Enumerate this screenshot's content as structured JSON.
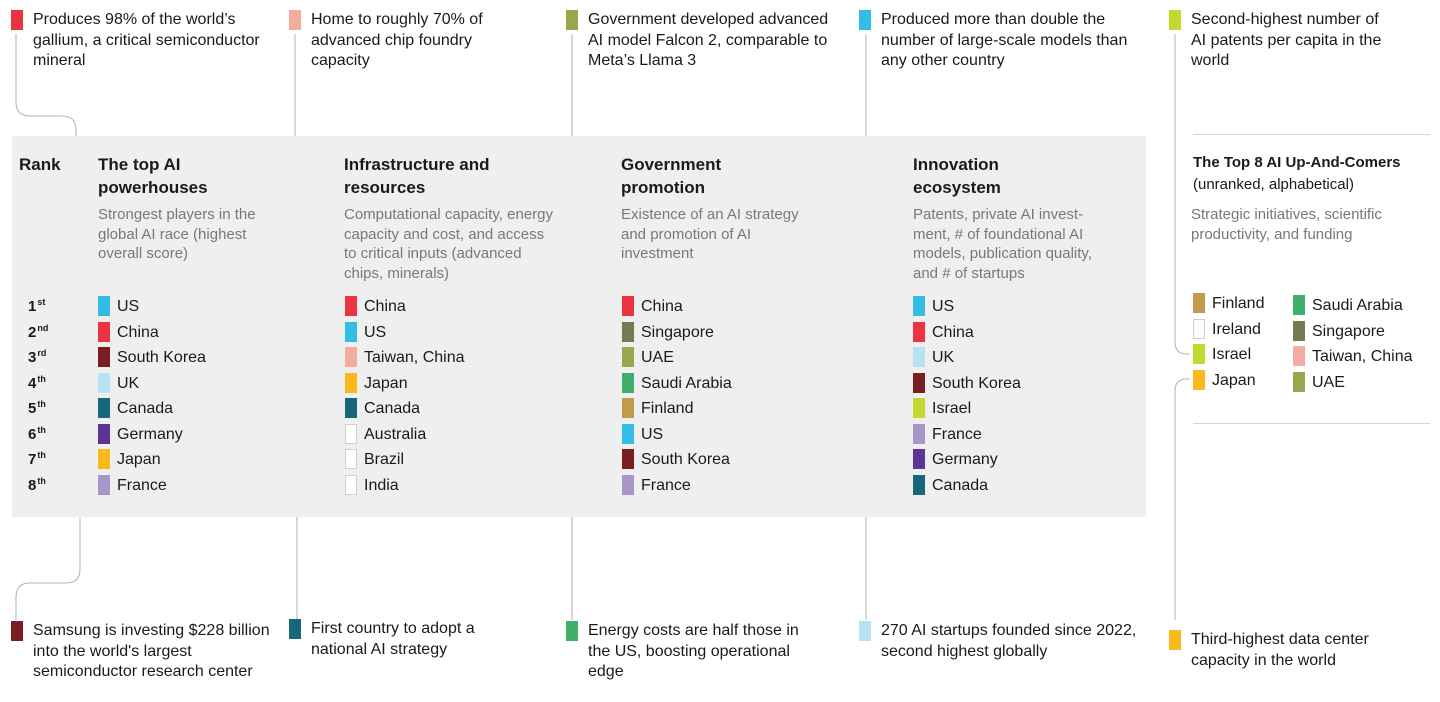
{
  "colors": {
    "US": "#33bde4",
    "China": "#ea3442",
    "South Korea": "#7a1e24",
    "UK": "#b6e2f3",
    "Canada": "#17667a",
    "Germany": "#5b3494",
    "Japan": "#f9b81b",
    "France": "#a796c8",
    "Taiwan, China": "#f4aba0",
    "Australia": "#ffffff",
    "Brazil": "#ffffff",
    "India": "#ffffff",
    "Singapore": "#737b52",
    "UAE": "#9aa550",
    "Saudi Arabia": "#3fb06b",
    "Finland": "#c39a4b",
    "Israel": "#c3d92f",
    "Ireland": "#ffffff"
  },
  "callouts_top": [
    {
      "text": "Produces 98% of the world’s gallium, a critical semiconductor mineral",
      "country": "China"
    },
    {
      "text": "Home to roughly 70% of advanced chip foundry capacity",
      "country": "Taiwan, China"
    },
    {
      "text": "Government developed advanced AI model Falcon 2, comparable to Meta’s Llama 3",
      "country": "UAE"
    },
    {
      "text": "Produced more than double the number of large-scale models than any other country",
      "country": "US"
    },
    {
      "text": "Second-highest number of AI patents per capita in the world",
      "country": "Israel"
    }
  ],
  "callouts_bottom": [
    {
      "text": "Samsung is investing $228 billion into the world's largest semiconductor research center",
      "country": "South Korea"
    },
    {
      "text": "First country to adopt a national AI strategy",
      "country": "Canada"
    },
    {
      "text": "Energy costs are half those in the US, boosting operational edge",
      "country": "Saudi Arabia"
    },
    {
      "text": "270 AI startups founded since 2022, second highest globally",
      "country": "UK"
    },
    {
      "text": "Third-highest data center capacity in the world",
      "country": "Japan"
    }
  ],
  "rank_header": "Rank",
  "ranks": [
    {
      "n": "1",
      "suf": "st"
    },
    {
      "n": "2",
      "suf": "nd"
    },
    {
      "n": "3",
      "suf": "rd"
    },
    {
      "n": "4",
      "suf": "th"
    },
    {
      "n": "5",
      "suf": "th"
    },
    {
      "n": "6",
      "suf": "th"
    },
    {
      "n": "7",
      "suf": "th"
    },
    {
      "n": "8",
      "suf": "th"
    }
  ],
  "columns": [
    {
      "title": "The top AI powerhouses",
      "subtitle": "Strongest players in the global AI race (highest overall score)",
      "items": [
        "US",
        "China",
        "South Korea",
        "UK",
        "Canada",
        "Germany",
        "Japan",
        "France"
      ]
    },
    {
      "title": "Infrastructure and resources",
      "subtitle": "Computational capacity, energy capacity and cost, and access to critical inputs (advanced chips, minerals)",
      "items": [
        "China",
        "US",
        "Taiwan, China",
        "Japan",
        "Canada",
        "Australia",
        "Brazil",
        "India"
      ]
    },
    {
      "title": "Government promotion",
      "subtitle": "Existence of an AI strategy and promotion of AI investment",
      "items": [
        "China",
        "Singapore",
        "UAE",
        "Saudi Arabia",
        "Finland",
        "US",
        "South Korea",
        "France"
      ]
    },
    {
      "title": "Innovation ecosystem",
      "subtitle": "Patents, private AI invest-ment, # of foundational AI models, publication quality, and # of startups",
      "items": [
        "US",
        "China",
        "UK",
        "South Korea",
        "Israel",
        "France",
        "Germany",
        "Canada"
      ]
    }
  ],
  "upcomers": {
    "title": "The Top 8 AI Up-And-Comers",
    "note": "(unranked, alphabetical)",
    "subtitle": "Strategic initiatives, scientific productivity, and funding",
    "col1": [
      "Finland",
      "Ireland",
      "Israel",
      "Japan"
    ],
    "col2": [
      "Saudi Arabia",
      "Singapore",
      "Taiwan, China",
      "UAE"
    ]
  }
}
